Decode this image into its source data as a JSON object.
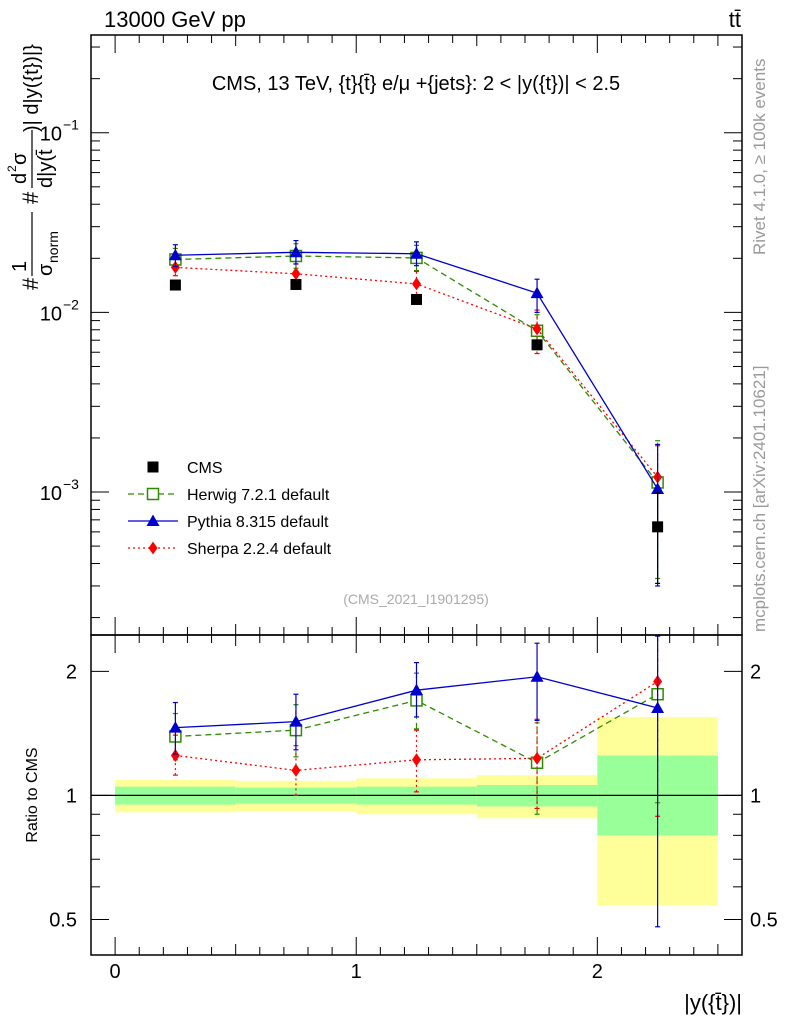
{
  "header": {
    "left": "13000 GeV pp",
    "right": "tt̄"
  },
  "side_text": {
    "rivet": "Rivet 4.1.0, ≥ 100k events",
    "mcplots": "mcplots.cern.ch [arXiv:2401.10621]"
  },
  "colors": {
    "cms": "#000000",
    "herwig": "#2e8b00",
    "pythia": "#0000cc",
    "sherpa": "#ff0000",
    "band_outer": "#ffff99",
    "band_inner": "#99ff99"
  },
  "chart_data": [
    {
      "type": "line",
      "title": "CMS, 13 TeV, {t}{t̄} e/μ +{jets}: 2 < |y({t})| < 2.5",
      "ylabel_parts": {
        "prefix": "#",
        "one": "1",
        "sigma": "σ",
        "norm": "norm",
        "hash2": "#",
        "d2": "d",
        "sup2": "2",
        "sigma2": "σ",
        "den": "d|y(t̄",
        "tail": ")| d|y({t})|}"
      },
      "yscale": "log",
      "ylim": [
        0.00016,
        0.35
      ],
      "yticks": [
        {
          "value": 0.1,
          "base": "10",
          "exp": "−1"
        },
        {
          "value": 0.01,
          "base": "10",
          "exp": "−2"
        },
        {
          "value": 0.001,
          "base": "10",
          "exp": "−3"
        }
      ],
      "x": [
        0.25,
        0.75,
        1.25,
        1.75,
        2.25
      ],
      "xlim": [
        -0.1,
        2.6
      ],
      "watermark": "(CMS_2021_I1901295)",
      "series": [
        {
          "name": "CMS",
          "key": "cms",
          "marker": "square",
          "values": [
            0.0142,
            0.0143,
            0.0118,
            0.0066,
            0.00064
          ],
          "err_low": [
            0,
            0,
            0,
            0,
            0.00033
          ],
          "err_high": [
            0,
            0,
            0,
            0,
            0.00035
          ]
        },
        {
          "name": "Herwig 7.2.1 default",
          "key": "herwig",
          "marker": "open-square",
          "dash": "6,4",
          "values": [
            0.0197,
            0.0206,
            0.0201,
            0.0079,
            0.00113
          ],
          "err_low": [
            0.0025,
            0.003,
            0.003,
            0.0017,
            0.0008
          ],
          "err_high": [
            0.003,
            0.0035,
            0.0035,
            0.0018,
            0.0008
          ]
        },
        {
          "name": "Pythia 8.315 default",
          "key": "pythia",
          "marker": "triangle",
          "values": [
            0.0208,
            0.0216,
            0.0212,
            0.0128,
            0.00104
          ],
          "err_low": [
            0.0028,
            0.003,
            0.003,
            0.0028,
            0.00074
          ],
          "err_high": [
            0.003,
            0.0035,
            0.0035,
            0.0025,
            0.0008
          ]
        },
        {
          "name": "Sherpa 2.2.4 default",
          "key": "sherpa",
          "marker": "diamond",
          "dash": "2,3",
          "values": [
            0.0178,
            0.0164,
            0.0144,
            0.0081,
            0.00121
          ],
          "err_low": [
            0.0018,
            0.0022,
            0.0025,
            0.0022,
            0.0006
          ],
          "err_high": [
            0.002,
            0.0022,
            0.0025,
            0.0022,
            0.0006
          ]
        }
      ]
    },
    {
      "type": "line",
      "ylabel": "Ratio to CMS",
      "xlabel": "|y({t̄})|",
      "yscale": "log",
      "ylim": [
        0.41,
        2.45
      ],
      "yticks": [
        0.5,
        1,
        2
      ],
      "xticks": [
        0,
        1,
        2
      ],
      "xlim": [
        -0.1,
        2.6
      ],
      "x": [
        0.25,
        0.75,
        1.25,
        1.75,
        2.25
      ],
      "bins": [
        [
          0,
          0.5
        ],
        [
          0.5,
          1.0
        ],
        [
          1.0,
          1.5
        ],
        [
          1.5,
          2.0
        ],
        [
          2.0,
          2.5
        ]
      ],
      "band_outer": [
        [
          0.91,
          1.09
        ],
        [
          0.915,
          1.085
        ],
        [
          0.9,
          1.1
        ],
        [
          0.88,
          1.12
        ],
        [
          0.54,
          1.55
        ]
      ],
      "band_inner": [
        [
          0.95,
          1.05
        ],
        [
          0.955,
          1.045
        ],
        [
          0.95,
          1.05
        ],
        [
          0.94,
          1.06
        ],
        [
          0.8,
          1.25
        ]
      ],
      "series": [
        {
          "name": "Herwig 7.2.1 default",
          "key": "herwig",
          "marker": "open-square",
          "dash": "6,4",
          "values": [
            1.39,
            1.44,
            1.7,
            1.2,
            1.76
          ],
          "err_low": [
            0.17,
            0.2,
            0.25,
            0.3,
            0.8
          ],
          "err_high": [
            0.19,
            0.22,
            0.28,
            0.3,
            0.9
          ]
        },
        {
          "name": "Pythia 8.315 default",
          "key": "pythia",
          "marker": "triangle",
          "values": [
            1.46,
            1.51,
            1.8,
            1.94,
            1.63
          ],
          "err_low": [
            0.2,
            0.22,
            0.25,
            0.42,
            1.15
          ],
          "err_high": [
            0.22,
            0.25,
            0.3,
            0.4,
            1.2
          ]
        },
        {
          "name": "Sherpa 2.2.4 default",
          "key": "sherpa",
          "marker": "diamond",
          "dash": "2,3",
          "values": [
            1.25,
            1.15,
            1.22,
            1.23,
            1.89
          ],
          "err_low": [
            0.13,
            0.15,
            0.2,
            0.3,
            1.0
          ],
          "err_high": [
            0.15,
            0.17,
            0.22,
            0.3,
            1.2
          ]
        }
      ]
    }
  ]
}
